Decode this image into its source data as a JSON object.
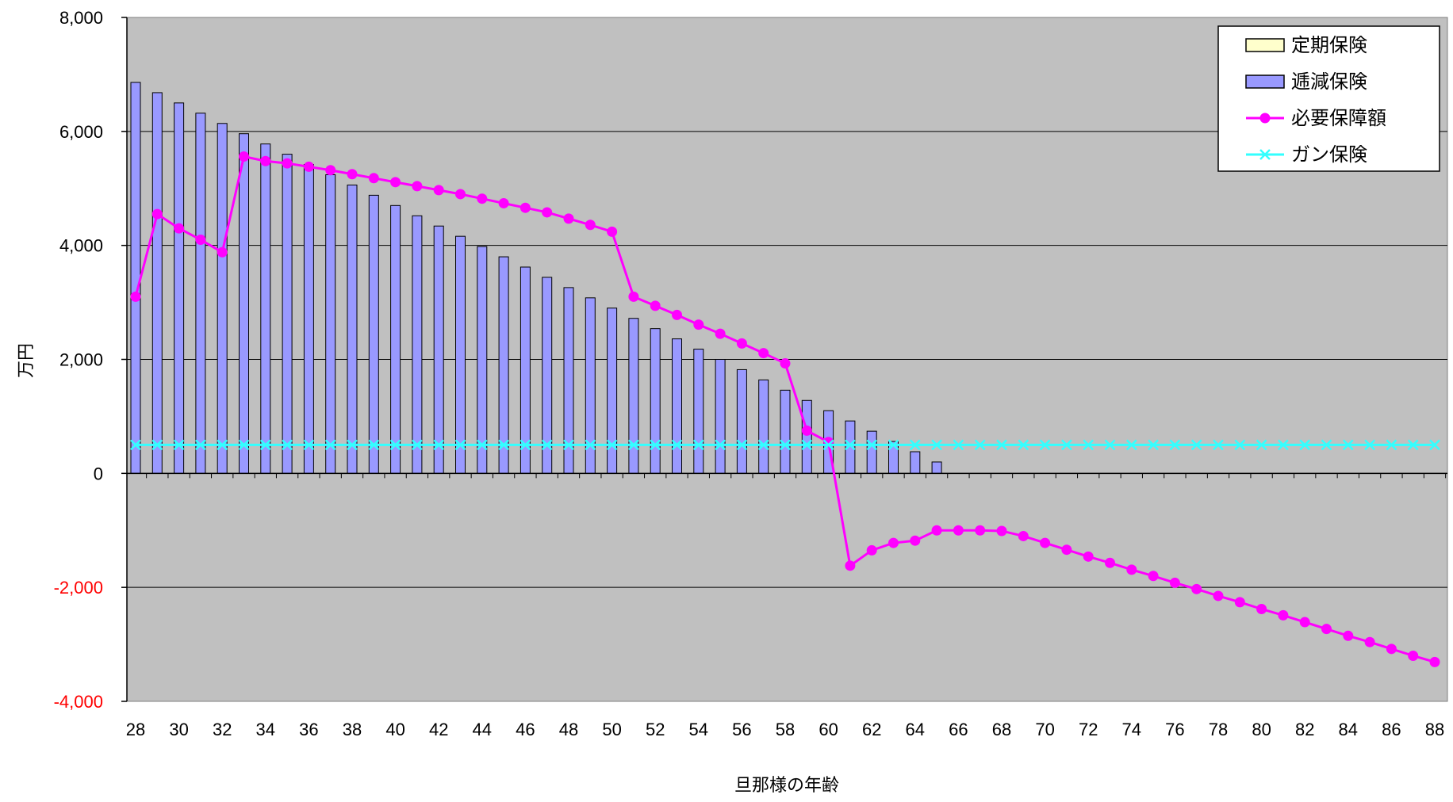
{
  "chart_data": {
    "type": "bar",
    "xlabel": "旦那様の年齢",
    "ylabel": "万円",
    "ylim": [
      -4000,
      8000
    ],
    "yticks": [
      8000,
      6000,
      4000,
      2000,
      0,
      -2000,
      -4000
    ],
    "ytick_labels": [
      "8,000",
      "6,000",
      "4,000",
      "2,000",
      "0",
      "-2,000",
      "-4,000"
    ],
    "x": [
      28,
      29,
      30,
      31,
      32,
      33,
      34,
      35,
      36,
      37,
      38,
      39,
      40,
      41,
      42,
      43,
      44,
      45,
      46,
      47,
      48,
      49,
      50,
      51,
      52,
      53,
      54,
      55,
      56,
      57,
      58,
      59,
      60,
      61,
      62,
      63,
      64,
      65,
      66,
      67,
      68,
      69,
      70,
      71,
      72,
      73,
      74,
      75,
      76,
      77,
      78,
      79,
      80,
      81,
      82,
      83,
      84,
      85,
      86,
      87,
      88
    ],
    "xtick_labels": [
      "28",
      "30",
      "32",
      "34",
      "36",
      "38",
      "40",
      "42",
      "44",
      "46",
      "48",
      "50",
      "52",
      "54",
      "56",
      "58",
      "60",
      "62",
      "64",
      "66",
      "68",
      "70",
      "72",
      "74",
      "76",
      "78",
      "80",
      "82",
      "84",
      "86",
      "88"
    ],
    "grid": true,
    "legend_position": "top-right",
    "series": [
      {
        "name": "定期保険",
        "type": "bar",
        "color": "#FFFFCC",
        "values": [
          0,
          0,
          0,
          0,
          0,
          0,
          0,
          0,
          0,
          0,
          0,
          0,
          0,
          0,
          0,
          0,
          0,
          0,
          0,
          0,
          0,
          0,
          0,
          0,
          0,
          0,
          0,
          0,
          0,
          0,
          0,
          0,
          0,
          0,
          0,
          0,
          0,
          0,
          0,
          0,
          0,
          0,
          0,
          0,
          0,
          0,
          0,
          0,
          0,
          0,
          0,
          0,
          0,
          0,
          0,
          0,
          0,
          0,
          0,
          0,
          0
        ]
      },
      {
        "name": "逓減保険",
        "type": "bar",
        "color": "#9999FF",
        "values": [
          6860,
          6680,
          6500,
          6320,
          6140,
          5960,
          5780,
          5600,
          5420,
          5240,
          5060,
          4880,
          4700,
          4520,
          4340,
          4160,
          3980,
          3800,
          3620,
          3440,
          3260,
          3080,
          2900,
          2720,
          2540,
          2360,
          2180,
          2000,
          1820,
          1640,
          1460,
          1280,
          1100,
          920,
          740,
          560,
          380,
          200,
          0,
          0,
          0,
          0,
          0,
          0,
          0,
          0,
          0,
          0,
          0,
          0,
          0,
          0,
          0,
          0,
          0,
          0,
          0,
          0,
          0,
          0,
          0
        ]
      },
      {
        "name": "必要保障額",
        "type": "line",
        "color": "#FF00FF",
        "values": [
          3100,
          4550,
          4300,
          4100,
          3880,
          5560,
          5480,
          5440,
          5380,
          5320,
          5250,
          5180,
          5110,
          5040,
          4970,
          4900,
          4820,
          4740,
          4660,
          4580,
          4470,
          4360,
          4240,
          3100,
          2940,
          2780,
          2610,
          2450,
          2280,
          2110,
          1930,
          750,
          550,
          -1620,
          -1350,
          -1220,
          -1180,
          -1000,
          -1000,
          -1000,
          -1010,
          -1100,
          -1220,
          -1340,
          -1460,
          -1570,
          -1690,
          -1800,
          -1920,
          -2030,
          -2150,
          -2260,
          -2380,
          -2490,
          -2610,
          -2730,
          -2850,
          -2960,
          -3080,
          -3200,
          -3310
        ]
      },
      {
        "name": "ガン保険",
        "type": "line",
        "color": "#33FFFF",
        "values": [
          500,
          500,
          500,
          500,
          500,
          500,
          500,
          500,
          500,
          500,
          500,
          500,
          500,
          500,
          500,
          500,
          500,
          500,
          500,
          500,
          500,
          500,
          500,
          500,
          500,
          500,
          500,
          500,
          500,
          500,
          500,
          500,
          500,
          500,
          500,
          500,
          500,
          500,
          500,
          500,
          500,
          500,
          500,
          500,
          500,
          500,
          500,
          500,
          500,
          500,
          500,
          500,
          500,
          500,
          500,
          500,
          500,
          500,
          500,
          500,
          500
        ]
      }
    ]
  },
  "colors": {
    "plot_background": "#C0C0C0",
    "negative_tick_label": "#FF0000",
    "axis": "#000000",
    "gridline": "#000000"
  }
}
